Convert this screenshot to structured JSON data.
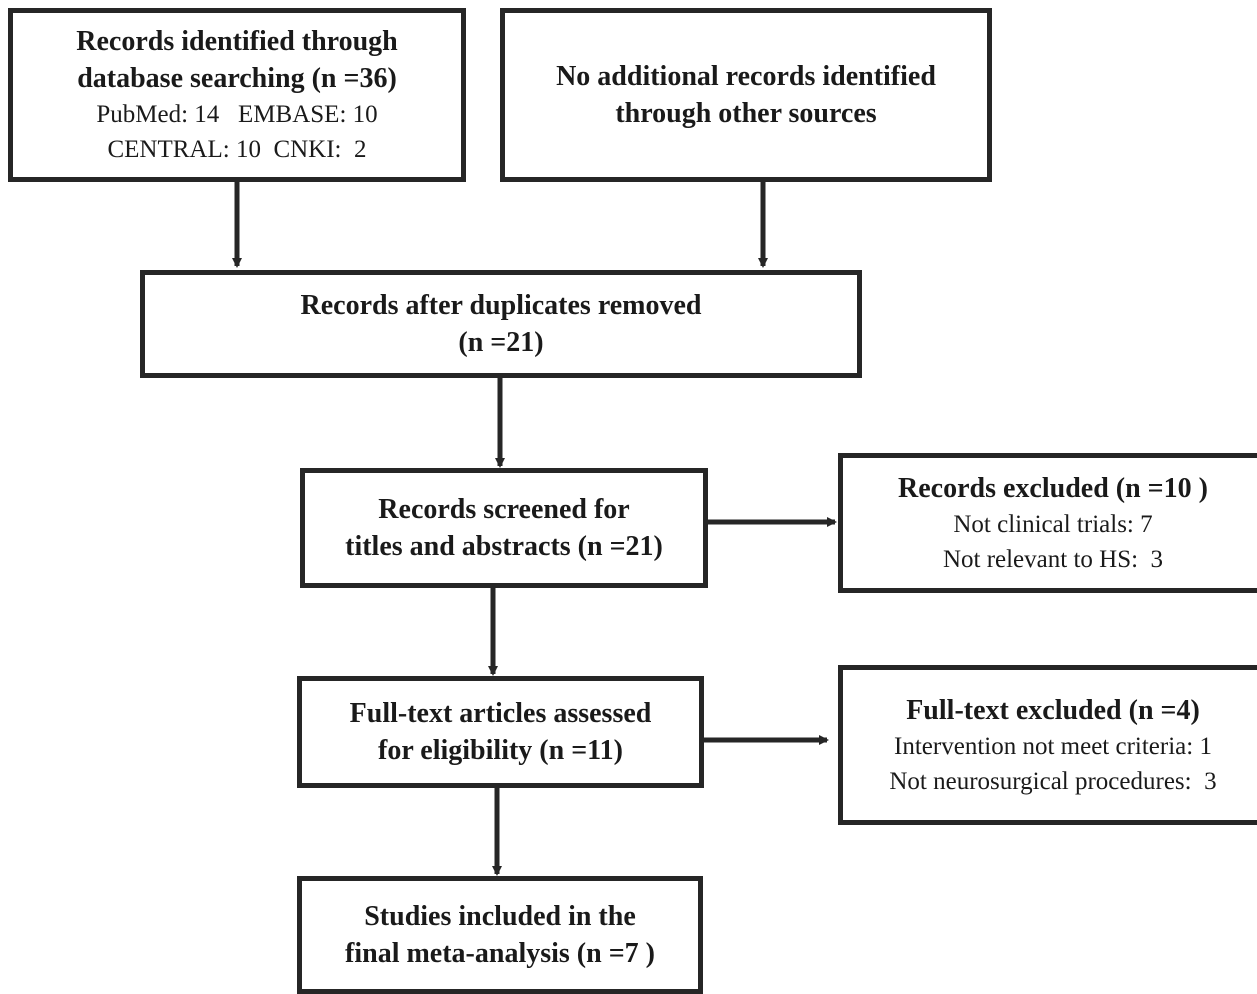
{
  "flow": {
    "identified": {
      "title1": "Records identified through",
      "title2": "database searching (n =36)",
      "line3": "PubMed: 14   EMBASE: 10",
      "line4": "CENTRAL: 10  CNKI:  2"
    },
    "other_sources": {
      "line1": "No additional records identified",
      "line2": "through other sources"
    },
    "deduplicated": {
      "line1": "Records after duplicates removed",
      "line2": "(n =21)"
    },
    "screened": {
      "line1": "Records screened for",
      "line2": "titles and abstracts (n =21)"
    },
    "records_excluded": {
      "title": "Records excluded (n =10 )",
      "line2": "Not clinical trials: 7",
      "line3": "Not relevant to HS:  3"
    },
    "eligibility": {
      "line1": "Full-text articles assessed",
      "line2": "for eligibility (n =11)"
    },
    "fulltext_excluded": {
      "title": "Full-text excluded (n =4)",
      "line2": "Intervention not meet criteria: 1",
      "line3": "Not neurosurgical procedures:  3"
    },
    "included": {
      "line1": "Studies included in the",
      "line2": "final meta-analysis (n =7 )"
    }
  }
}
